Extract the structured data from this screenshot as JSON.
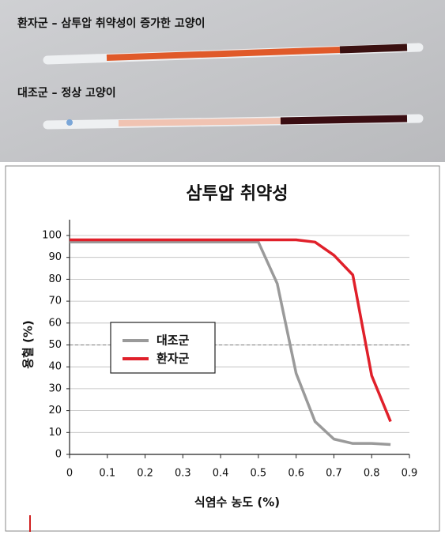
{
  "photo": {
    "label_patient": "환자군 – 삼투압 취약성이 증가한 고양이",
    "label_control": "대조군 – 정상 고양이"
  },
  "chart_data": {
    "type": "line",
    "title": "삼투압 취약성",
    "xlabel": "식염수 농도 (%)",
    "ylabel": "용혈 (%)",
    "x": [
      0,
      0.1,
      0.2,
      0.3,
      0.4,
      0.5,
      0.55,
      0.6,
      0.65,
      0.7,
      0.75,
      0.8,
      0.85
    ],
    "series": [
      {
        "name": "대조군",
        "color": "#9a9a9a",
        "values": [
          97,
          97,
          97,
          97,
          97,
          97,
          78,
          37,
          15,
          7,
          5,
          5,
          4.5
        ]
      },
      {
        "name": "환자군",
        "color": "#e0202a",
        "values": [
          98,
          98,
          98,
          98,
          98,
          98,
          98,
          98,
          97,
          91,
          82,
          36,
          15
        ]
      }
    ],
    "xlim": [
      0,
      0.9
    ],
    "xticks": [
      0,
      0.1,
      0.2,
      0.3,
      0.4,
      0.5,
      0.6,
      0.7,
      0.8,
      0.9
    ],
    "ylim": [
      0,
      100
    ],
    "yticks": [
      0,
      10,
      20,
      30,
      40,
      50,
      60,
      70,
      80,
      90,
      100
    ],
    "grid": true,
    "reference_line": 50
  }
}
